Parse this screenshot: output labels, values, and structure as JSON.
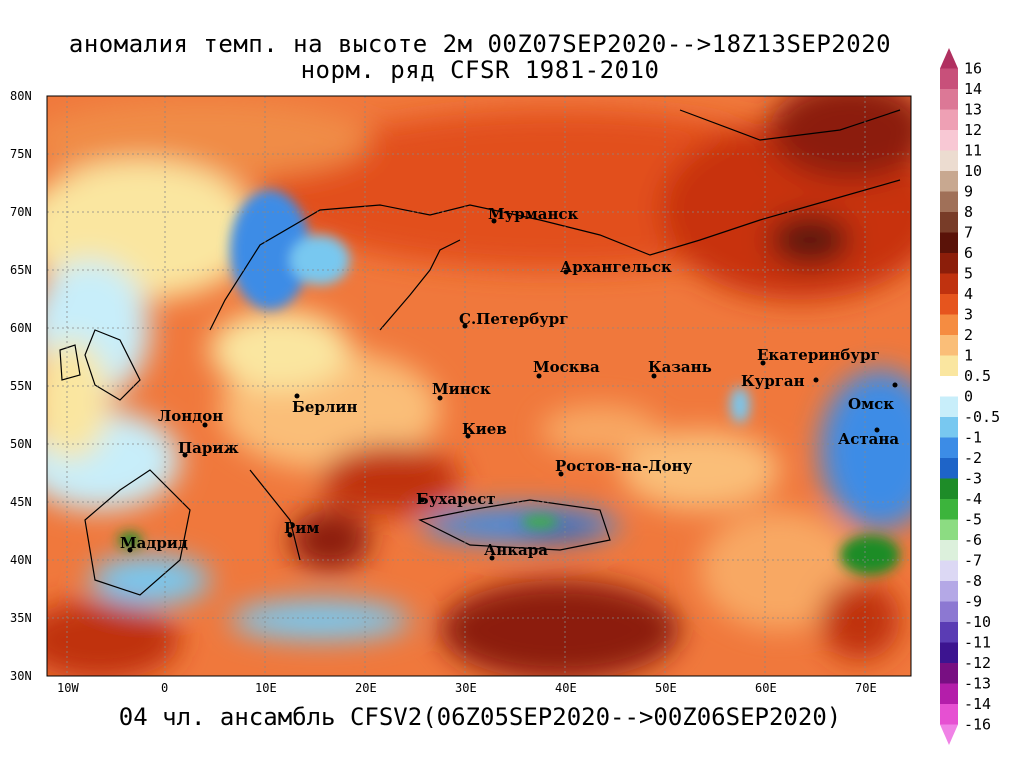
{
  "title": {
    "line1": "аномалия темп. на высоте 2м 00Z07SEP2020-->18Z13SEP2020",
    "line2": "норм. ряд CFSR 1981-2010"
  },
  "footer": "04 чл. ансамбль CFSV2(06Z05SEP2020-->00Z06SEP2020)",
  "map": {
    "lat_labels": [
      "80N",
      "75N",
      "70N",
      "65N",
      "60N",
      "55N",
      "50N",
      "45N",
      "40N",
      "35N",
      "30N"
    ],
    "lon_labels": [
      "10W",
      "0",
      "10E",
      "20E",
      "30E",
      "40E",
      "50E",
      "60E",
      "70E"
    ],
    "cities": [
      {
        "name": "Мурманск"
      },
      {
        "name": "Архангельск"
      },
      {
        "name": "С.Петербург"
      },
      {
        "name": "Москва"
      },
      {
        "name": "Казань"
      },
      {
        "name": "Екатеринбург"
      },
      {
        "name": "Курган"
      },
      {
        "name": "Омск"
      },
      {
        "name": "Астана"
      },
      {
        "name": "Минск"
      },
      {
        "name": "Берлин"
      },
      {
        "name": "Лондон"
      },
      {
        "name": "Париж"
      },
      {
        "name": "Киев"
      },
      {
        "name": "Ростов-на-Дону"
      },
      {
        "name": "Бухарест"
      },
      {
        "name": "Рим"
      },
      {
        "name": "Мадрид"
      },
      {
        "name": "Анкара"
      }
    ]
  },
  "colorbar": {
    "labels": [
      "16",
      "14",
      "13",
      "12",
      "11",
      "10",
      "9",
      "8",
      "7",
      "6",
      "5",
      "4",
      "3",
      "2",
      "1",
      "0.5",
      "0",
      "-0.5",
      "-1",
      "-2",
      "-3",
      "-4",
      "-5",
      "-6",
      "-7",
      "-8",
      "-9",
      "-10",
      "-11",
      "-12",
      "-13",
      "-14",
      "-16"
    ],
    "colors": [
      "#b03060",
      "#c8507a",
      "#dc7896",
      "#eea0b4",
      "#f8c8d4",
      "#ecdcd0",
      "#c8a890",
      "#a07058",
      "#783c28",
      "#5a1208",
      "#8c1e0a",
      "#c0320f",
      "#e6551e",
      "#f58c41",
      "#fabe78",
      "#fae6a0",
      "#ffffff",
      "#c8eefa",
      "#78c8f0",
      "#3c8ce6",
      "#1e64c8",
      "#1e8c28",
      "#3cb43c",
      "#8cdc82",
      "#dcf0dc",
      "#dcd8f4",
      "#b4a8e6",
      "#8c78d2",
      "#5a3cb4",
      "#3c1490",
      "#780f82",
      "#b41eaa",
      "#e650d2",
      "#f082e6"
    ]
  }
}
